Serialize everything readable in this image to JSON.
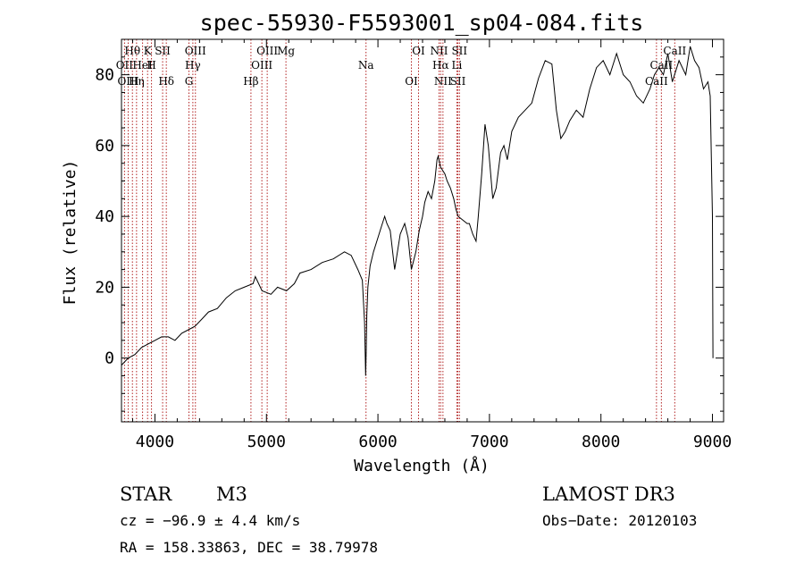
{
  "chart_data": {
    "type": "line",
    "title": "spec-55930-F5593001_sp04-084.fits",
    "xlabel": "Wavelength (Å)",
    "ylabel": "Flux (relative)",
    "xlim": [
      3700,
      9100
    ],
    "ylim": [
      -18,
      90
    ],
    "xticks": [
      4000,
      5000,
      6000,
      7000,
      8000,
      9000
    ],
    "yticks": [
      0,
      20,
      40,
      60,
      80
    ],
    "line_color": "#000000",
    "marker_color": "#b22222",
    "spectrum": {
      "name": "flux",
      "x": [
        3700,
        3760,
        3820,
        3880,
        3940,
        4000,
        4060,
        4120,
        4180,
        4240,
        4300,
        4360,
        4420,
        4480,
        4560,
        4640,
        4720,
        4800,
        4880,
        4900,
        4960,
        5040,
        5100,
        5180,
        5250,
        5300,
        5400,
        5500,
        5600,
        5700,
        5760,
        5820,
        5860,
        5880,
        5890,
        5895,
        5900,
        5910,
        5930,
        5960,
        6000,
        6030,
        6060,
        6080,
        6110,
        6150,
        6200,
        6240,
        6270,
        6300,
        6340,
        6370,
        6400,
        6420,
        6450,
        6480,
        6510,
        6530,
        6540,
        6560,
        6580,
        6600,
        6620,
        6650,
        6680,
        6700,
        6720,
        6760,
        6800,
        6820,
        6850,
        6880,
        6900,
        6930,
        6960,
        6990,
        7030,
        7060,
        7100,
        7130,
        7160,
        7200,
        7260,
        7320,
        7380,
        7440,
        7500,
        7560,
        7600,
        7640,
        7680,
        7720,
        7780,
        7840,
        7900,
        7960,
        8020,
        8080,
        8140,
        8200,
        8260,
        8320,
        8380,
        8440,
        8480,
        8520,
        8560,
        8600,
        8640,
        8700,
        8760,
        8800,
        8840,
        8880,
        8920,
        8960,
        8980,
        9000,
        9005
      ],
      "y": [
        -2,
        0,
        1,
        3,
        4,
        5,
        6,
        6,
        5,
        7,
        8,
        9,
        11,
        13,
        14,
        17,
        19,
        20,
        21,
        23,
        19,
        18,
        20,
        19,
        21,
        24,
        25,
        27,
        28,
        30,
        29,
        25,
        22,
        10,
        -5,
        3,
        12,
        20,
        26,
        30,
        34,
        37,
        40,
        38,
        36,
        25,
        35,
        38,
        34,
        25,
        30,
        36,
        40,
        44,
        47,
        45,
        50,
        56,
        57,
        54,
        53,
        52,
        50,
        48,
        45,
        42,
        40,
        39,
        38,
        38,
        35,
        33,
        40,
        52,
        66,
        60,
        45,
        48,
        58,
        60,
        56,
        64,
        68,
        70,
        72,
        79,
        84,
        83,
        70,
        62,
        64,
        67,
        70,
        68,
        76,
        82,
        84,
        80,
        86,
        80,
        78,
        74,
        72,
        76,
        80,
        82,
        80,
        86,
        78,
        84,
        80,
        88,
        84,
        82,
        76,
        78,
        74,
        40,
        0
      ]
    },
    "line_markers": [
      {
        "label": "Hθ",
        "wavelength": 3798
      },
      {
        "label": "OII",
        "wavelength": 3727
      },
      {
        "label": "OIII",
        "wavelength": 3760
      },
      {
        "label": "K",
        "wavelength": 3934
      },
      {
        "label": "HeI",
        "wavelength": 3889
      },
      {
        "label": "Hη",
        "wavelength": 3835
      },
      {
        "label": "SII",
        "wavelength": 4069
      },
      {
        "label": "H",
        "wavelength": 3969
      },
      {
        "label": "Hδ",
        "wavelength": 4102
      },
      {
        "label": "OIII",
        "wavelength": 4363
      },
      {
        "label": "Hγ",
        "wavelength": 4340
      },
      {
        "label": "G",
        "wavelength": 4305
      },
      {
        "label": "OIII",
        "wavelength": 5007
      },
      {
        "label": "OIII",
        "wavelength": 4959
      },
      {
        "label": "Hβ",
        "wavelength": 4861
      },
      {
        "label": "Mg",
        "wavelength": 5175
      },
      {
        "label": "Na",
        "wavelength": 5893
      },
      {
        "label": "OI",
        "wavelength": 6300
      },
      {
        "label": "OI",
        "wavelength": 6364
      },
      {
        "label": "Hα",
        "wavelength": 6563
      },
      {
        "label": "SII",
        "wavelength": 6717
      },
      {
        "label": "NII",
        "wavelength": 6548
      },
      {
        "label": "Li",
        "wavelength": 6708
      },
      {
        "label": "NII",
        "wavelength": 6583
      },
      {
        "label": "SII",
        "wavelength": 6731
      },
      {
        "label": "CaII",
        "wavelength": 8542
      },
      {
        "label": "CaII",
        "wavelength": 8498
      },
      {
        "label": "CaII",
        "wavelength": 8662
      }
    ]
  },
  "footer": {
    "object_type": "STAR",
    "subclass": "M3",
    "survey": "LAMOST DR3",
    "redshift": "cz = −96.9 ± 4.4 km/s",
    "obs_date": "Obs−Date: 20120103",
    "coords": "RA = 158.33863, DEC =  38.79978"
  }
}
